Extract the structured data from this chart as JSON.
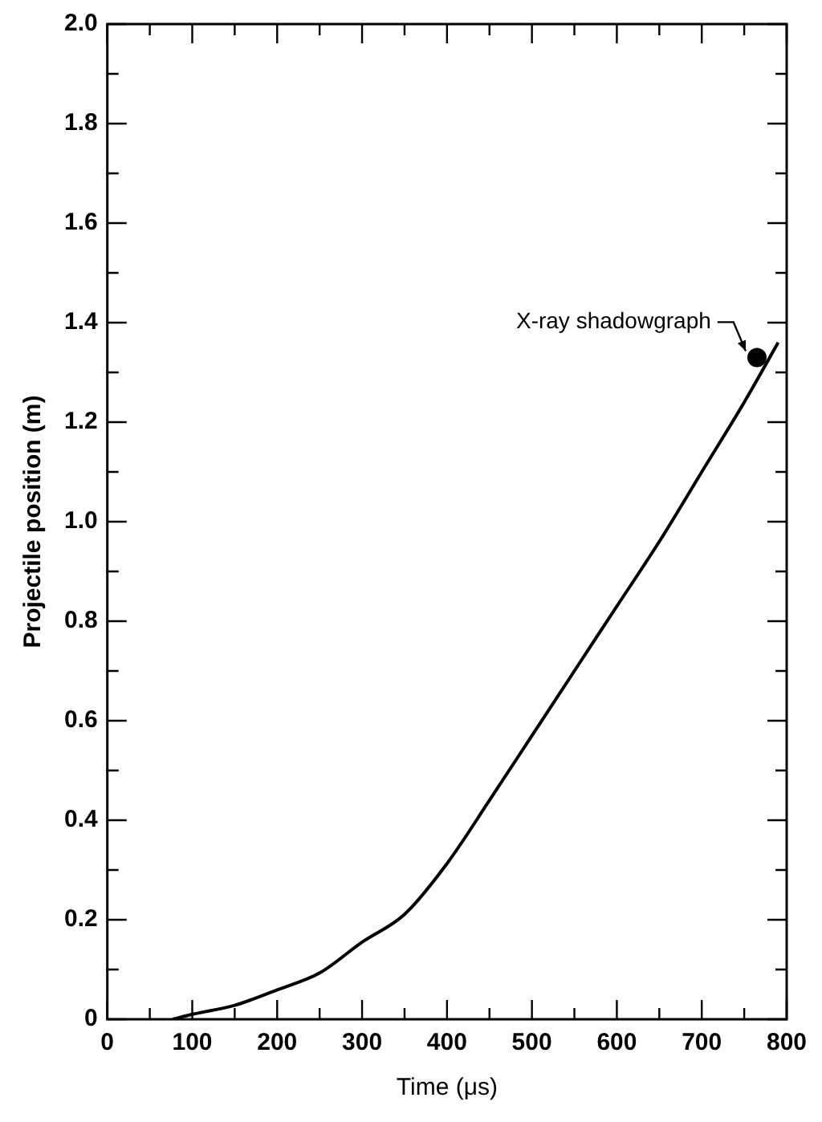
{
  "chart_data": {
    "type": "line",
    "xlabel": "Time (μs)",
    "ylabel": "Projectile position (m)",
    "xlim": [
      0,
      800
    ],
    "ylim": [
      0,
      2.0
    ],
    "xticks": [
      0,
      {
        "value": 50,
        "label": null
      },
      100,
      {
        "value": 150,
        "label": null
      },
      200,
      {
        "value": 250,
        "label": null
      },
      300,
      {
        "value": 350,
        "label": null
      },
      400,
      {
        "value": 450,
        "label": null
      },
      500,
      {
        "value": 550,
        "label": null
      },
      600,
      {
        "value": 650,
        "label": null
      },
      700,
      {
        "value": 750,
        "label": null
      },
      800
    ],
    "yticks": [
      0,
      {
        "value": 0.1,
        "label": null
      },
      0.2,
      {
        "value": 0.3,
        "label": null
      },
      0.4,
      {
        "value": 0.5,
        "label": null
      },
      0.6,
      {
        "value": 0.7,
        "label": null
      },
      0.8,
      {
        "value": 0.9,
        "label": null
      },
      {
        "value": 1.0,
        "label": "1.0"
      },
      {
        "value": 1.1,
        "label": null
      },
      1.2,
      {
        "value": 1.3,
        "label": null
      },
      1.4,
      {
        "value": 1.5,
        "label": null
      },
      1.6,
      {
        "value": 1.7,
        "label": null
      },
      1.8,
      {
        "value": 1.9,
        "label": null
      },
      {
        "value": 2.0,
        "label": "2.0"
      }
    ],
    "grid": false,
    "legend": false,
    "series": [
      {
        "color": "#000000",
        "marker": "none",
        "line_style": "solid",
        "x": [
          77,
          100,
          150,
          200,
          250,
          300,
          350,
          400,
          450,
          500,
          550,
          600,
          650,
          700,
          750,
          790
        ],
        "values": [
          0,
          0.01,
          0.028,
          0.059,
          0.093,
          0.155,
          0.211,
          0.313,
          0.44,
          0.57,
          0.7,
          0.83,
          0.96,
          1.1,
          1.24,
          1.36
        ]
      },
      {
        "type": "scatter",
        "color": "#000000",
        "marker": "circle",
        "x": [
          765
        ],
        "values": [
          1.33
        ]
      }
    ],
    "annotations": [
      {
        "text": "X-ray shadowgraph",
        "x": 765,
        "y": 1.33
      }
    ]
  }
}
